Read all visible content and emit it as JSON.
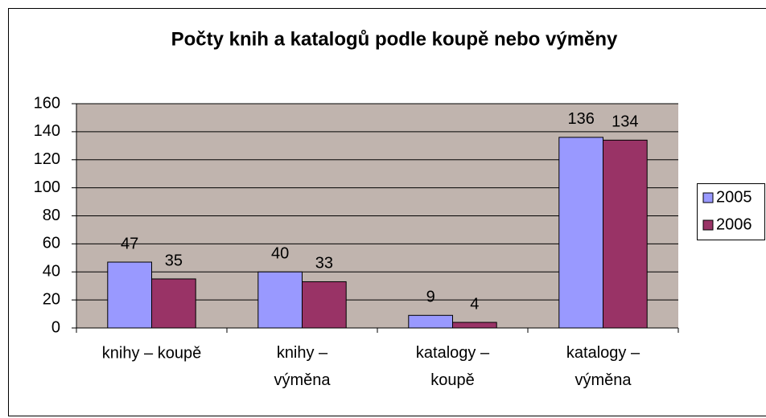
{
  "chart_data": {
    "type": "bar",
    "title": "Počty knih a katalogů podle koupě nebo výměny",
    "categories": [
      "knihy – koupě",
      "knihy – výměna",
      "katalogy – koupě",
      "katalogy – výměna"
    ],
    "series": [
      {
        "name": "2005",
        "color": "#9999ff",
        "values": [
          47,
          40,
          9,
          136
        ]
      },
      {
        "name": "2006",
        "color": "#993366",
        "values": [
          35,
          33,
          4,
          134
        ]
      }
    ],
    "ylim": [
      0,
      160
    ],
    "yticks": [
      0,
      20,
      40,
      60,
      80,
      100,
      120,
      140,
      160
    ],
    "grid": true,
    "legend": "right"
  }
}
